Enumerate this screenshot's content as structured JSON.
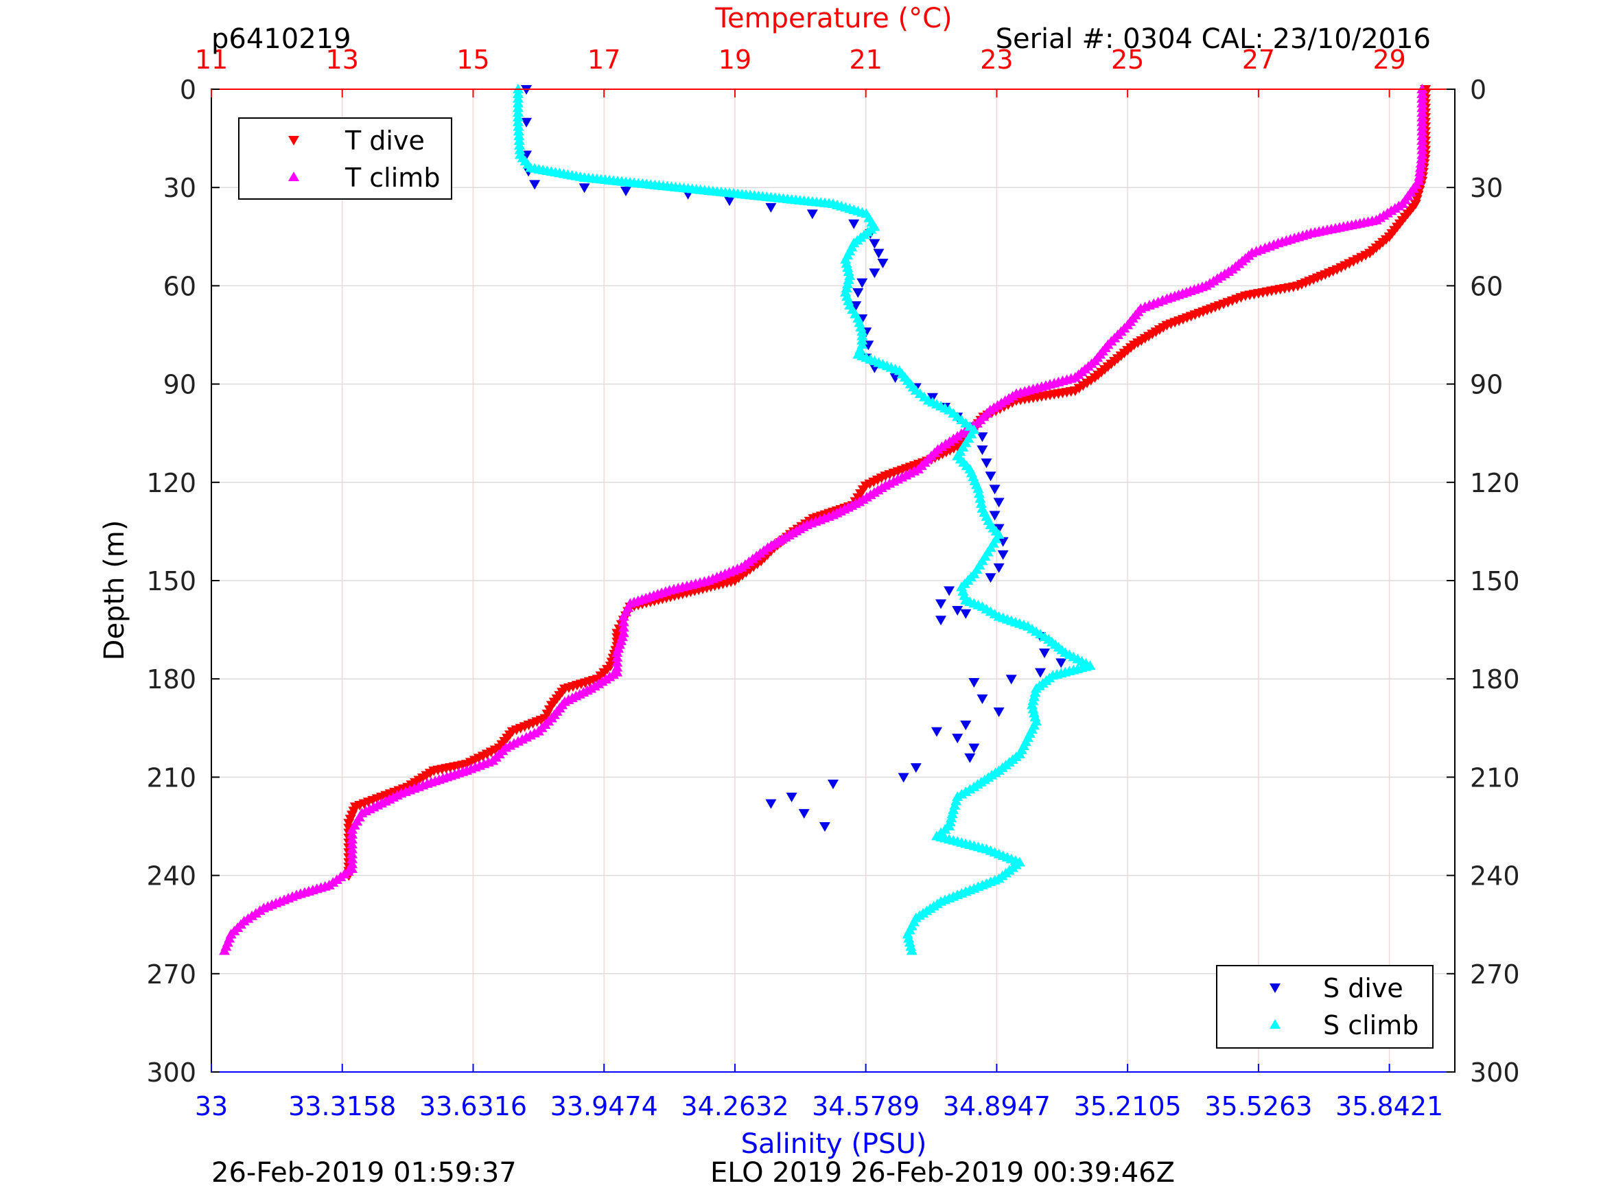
{
  "chart_data": {
    "type": "scatter",
    "header": {
      "left": "p6410219",
      "right": "Serial #: 0304  CAL: 23/10/2016"
    },
    "footer": {
      "left": "26-Feb-2019 01:59:37",
      "right": "ELO 2019 26-Feb-2019 00:39:46Z"
    },
    "axes": {
      "y": {
        "label": "Depth (m)",
        "range": [
          0,
          300
        ],
        "inverted": true,
        "ticks": [
          0,
          30,
          60,
          90,
          120,
          150,
          180,
          210,
          240,
          270,
          300
        ],
        "tick_labels": [
          "0",
          "30",
          "60",
          "90",
          "120",
          "150",
          "180",
          "210",
          "240",
          "270",
          "300"
        ]
      },
      "x_top": {
        "label": "Temperature (°C)",
        "range": [
          11,
          30
        ],
        "ticks": [
          11,
          13,
          15,
          17,
          19,
          21,
          23,
          25,
          27,
          29
        ],
        "tick_labels": [
          "11",
          "13",
          "15",
          "17",
          "19",
          "21",
          "23",
          "25",
          "27",
          "29"
        ]
      },
      "x_bottom": {
        "label": "Salinity (PSU)",
        "range": [
          33,
          36
        ],
        "ticks": [
          33,
          33.3158,
          33.6316,
          33.9474,
          34.2632,
          34.5789,
          34.8947,
          35.2105,
          35.5263,
          35.8421
        ],
        "tick_labels": [
          "33",
          "33.3158",
          "33.6316",
          "33.9474",
          "34.2632",
          "34.5789",
          "34.8947",
          "35.2105",
          "35.5263",
          "35.8421"
        ]
      }
    },
    "grid": true,
    "colors": {
      "temp_axis": "#ff0000",
      "sal_axis": "#0000ff",
      "t_dive": "#ff0000",
      "t_climb": "#ff00ff",
      "s_dive": "#0000ee",
      "s_climb": "#00ffff",
      "grid_temp": "#f0d8d8",
      "grid_depth": "#dcdcdc"
    },
    "legends": [
      {
        "position": "top-left",
        "entries": [
          {
            "label": "T dive",
            "series": "t_dive",
            "marker": "triangle-down"
          },
          {
            "label": "T climb",
            "series": "t_climb",
            "marker": "triangle-up"
          }
        ]
      },
      {
        "position": "bottom-right",
        "entries": [
          {
            "label": "S dive",
            "series": "s_dive",
            "marker": "triangle-down"
          },
          {
            "label": "S climb",
            "series": "s_climb",
            "marker": "triangle-up"
          }
        ]
      }
    ],
    "series": [
      {
        "name": "T dive",
        "key": "t_dive",
        "axis": "temperature",
        "marker": "triangle-down",
        "points": [
          [
            29.55,
            0
          ],
          [
            29.55,
            10
          ],
          [
            29.55,
            20
          ],
          [
            29.5,
            28
          ],
          [
            29.4,
            35
          ],
          [
            29.2,
            40
          ],
          [
            29.0,
            45
          ],
          [
            28.7,
            50
          ],
          [
            28.2,
            55
          ],
          [
            27.6,
            60
          ],
          [
            26.8,
            63
          ],
          [
            26.4,
            66
          ],
          [
            25.6,
            72
          ],
          [
            25.1,
            78
          ],
          [
            24.8,
            83
          ],
          [
            24.5,
            88
          ],
          [
            24.2,
            92
          ],
          [
            23.3,
            95
          ],
          [
            22.8,
            100
          ],
          [
            22.6,
            105
          ],
          [
            22.4,
            109
          ],
          [
            22.0,
            113
          ],
          [
            21.3,
            118
          ],
          [
            21.0,
            121
          ],
          [
            20.8,
            127
          ],
          [
            20.2,
            131
          ],
          [
            19.9,
            135
          ],
          [
            19.6,
            140
          ],
          [
            19.4,
            144
          ],
          [
            19.0,
            150
          ],
          [
            18.2,
            154
          ],
          [
            17.4,
            158
          ],
          [
            17.3,
            162
          ],
          [
            17.2,
            166
          ],
          [
            17.2,
            170
          ],
          [
            17.1,
            176
          ],
          [
            16.9,
            180
          ],
          [
            16.4,
            183
          ],
          [
            16.2,
            188
          ],
          [
            16.1,
            192
          ],
          [
            15.6,
            196
          ],
          [
            15.4,
            201
          ],
          [
            14.9,
            206
          ],
          [
            14.4,
            208
          ],
          [
            14.0,
            213
          ],
          [
            13.6,
            216
          ],
          [
            13.2,
            219
          ],
          [
            13.1,
            224
          ],
          [
            13.1,
            230
          ],
          [
            13.1,
            236
          ],
          [
            13.1,
            240
          ]
        ]
      },
      {
        "name": "T climb",
        "key": "t_climb",
        "axis": "temperature",
        "marker": "triangle-up",
        "points": [
          [
            29.5,
            0
          ],
          [
            29.5,
            10
          ],
          [
            29.5,
            20
          ],
          [
            29.45,
            28
          ],
          [
            29.2,
            35
          ],
          [
            28.8,
            40
          ],
          [
            27.8,
            44
          ],
          [
            27.3,
            47
          ],
          [
            26.9,
            50
          ],
          [
            26.6,
            55
          ],
          [
            26.2,
            60
          ],
          [
            25.6,
            64
          ],
          [
            25.2,
            67
          ],
          [
            25.0,
            72
          ],
          [
            24.7,
            78
          ],
          [
            24.5,
            83
          ],
          [
            24.2,
            88
          ],
          [
            23.3,
            93
          ],
          [
            22.9,
            98
          ],
          [
            22.7,
            102
          ],
          [
            22.4,
            106
          ],
          [
            22.1,
            110
          ],
          [
            21.8,
            116
          ],
          [
            21.3,
            121
          ],
          [
            20.9,
            126
          ],
          [
            20.5,
            130
          ],
          [
            20.1,
            133
          ],
          [
            19.5,
            140
          ],
          [
            19.1,
            146
          ],
          [
            18.6,
            150
          ],
          [
            18.0,
            153
          ],
          [
            17.4,
            157
          ],
          [
            17.3,
            161
          ],
          [
            17.3,
            166
          ],
          [
            17.2,
            172
          ],
          [
            17.2,
            178
          ],
          [
            16.8,
            183
          ],
          [
            16.4,
            187
          ],
          [
            16.2,
            192
          ],
          [
            16.0,
            196
          ],
          [
            15.5,
            201
          ],
          [
            15.3,
            205
          ],
          [
            14.9,
            208
          ],
          [
            14.3,
            212
          ],
          [
            13.9,
            215
          ],
          [
            13.6,
            218
          ],
          [
            13.3,
            221
          ],
          [
            13.15,
            226
          ],
          [
            13.15,
            232
          ],
          [
            13.15,
            238
          ],
          [
            12.8,
            243
          ],
          [
            12.3,
            246
          ],
          [
            11.8,
            250
          ],
          [
            11.5,
            254
          ],
          [
            11.3,
            258
          ],
          [
            11.2,
            263
          ]
        ]
      },
      {
        "name": "S dive",
        "key": "s_dive",
        "axis": "salinity",
        "marker": "triangle-down",
        "points": [
          [
            33.76,
            0
          ],
          [
            33.76,
            10
          ],
          [
            33.76,
            20
          ],
          [
            33.765,
            25
          ],
          [
            33.78,
            29
          ],
          [
            33.9,
            30
          ],
          [
            34.0,
            31
          ],
          [
            34.15,
            32
          ],
          [
            34.25,
            34
          ],
          [
            34.35,
            36
          ],
          [
            34.45,
            38
          ],
          [
            34.55,
            41
          ],
          [
            34.59,
            44
          ],
          [
            34.6,
            47
          ],
          [
            34.61,
            50
          ],
          [
            34.62,
            53
          ],
          [
            34.6,
            56
          ],
          [
            34.57,
            59
          ],
          [
            34.56,
            62
          ],
          [
            34.555,
            66
          ],
          [
            34.57,
            70
          ],
          [
            34.58,
            74
          ],
          [
            34.585,
            78
          ],
          [
            34.58,
            82
          ],
          [
            34.6,
            85
          ],
          [
            34.65,
            88
          ],
          [
            34.7,
            91
          ],
          [
            34.74,
            94
          ],
          [
            34.77,
            97
          ],
          [
            34.8,
            100
          ],
          [
            34.84,
            103
          ],
          [
            34.86,
            106
          ],
          [
            34.86,
            110
          ],
          [
            34.87,
            114
          ],
          [
            34.88,
            118
          ],
          [
            34.89,
            122
          ],
          [
            34.9,
            126
          ],
          [
            34.89,
            130
          ],
          [
            34.9,
            134
          ],
          [
            34.91,
            138
          ],
          [
            34.91,
            142
          ],
          [
            34.9,
            146
          ],
          [
            34.88,
            149
          ],
          [
            34.78,
            153
          ],
          [
            34.76,
            157
          ],
          [
            34.8,
            159
          ],
          [
            34.76,
            162
          ],
          [
            34.82,
            160
          ],
          [
            35.0,
            167
          ],
          [
            35.01,
            172
          ],
          [
            35.05,
            175
          ],
          [
            35.0,
            178
          ],
          [
            34.93,
            180
          ],
          [
            34.84,
            181
          ],
          [
            34.86,
            186
          ],
          [
            34.9,
            190
          ],
          [
            34.82,
            194
          ],
          [
            34.75,
            196
          ],
          [
            34.8,
            198
          ],
          [
            34.84,
            201
          ],
          [
            34.83,
            204
          ],
          [
            34.7,
            207
          ],
          [
            34.67,
            210
          ],
          [
            34.5,
            212
          ],
          [
            34.4,
            216
          ],
          [
            34.35,
            218
          ],
          [
            34.43,
            221
          ],
          [
            34.48,
            225
          ]
        ]
      },
      {
        "name": "S climb",
        "key": "s_climb",
        "axis": "salinity",
        "marker": "triangle-up",
        "points": [
          [
            33.74,
            0
          ],
          [
            33.74,
            10
          ],
          [
            33.745,
            20
          ],
          [
            33.77,
            24
          ],
          [
            33.9,
            27
          ],
          [
            34.05,
            29
          ],
          [
            34.2,
            31
          ],
          [
            34.35,
            33
          ],
          [
            34.5,
            35
          ],
          [
            34.58,
            38
          ],
          [
            34.6,
            42
          ],
          [
            34.55,
            47
          ],
          [
            34.53,
            52
          ],
          [
            34.54,
            57
          ],
          [
            34.53,
            62
          ],
          [
            34.54,
            66
          ],
          [
            34.56,
            70
          ],
          [
            34.57,
            74
          ],
          [
            34.57,
            78
          ],
          [
            34.56,
            81
          ],
          [
            34.6,
            83
          ],
          [
            34.66,
            86
          ],
          [
            34.68,
            89
          ],
          [
            34.7,
            92
          ],
          [
            34.73,
            95
          ],
          [
            34.78,
            98
          ],
          [
            34.81,
            101
          ],
          [
            34.84,
            104
          ],
          [
            34.82,
            108
          ],
          [
            34.8,
            112
          ],
          [
            34.83,
            116
          ],
          [
            34.85,
            122
          ],
          [
            34.86,
            128
          ],
          [
            34.88,
            133
          ],
          [
            34.9,
            136
          ],
          [
            34.88,
            140
          ],
          [
            34.86,
            144
          ],
          [
            34.84,
            148
          ],
          [
            34.81,
            152
          ],
          [
            34.82,
            156
          ],
          [
            34.86,
            158
          ],
          [
            34.9,
            161
          ],
          [
            34.97,
            164
          ],
          [
            35.02,
            168
          ],
          [
            35.06,
            172
          ],
          [
            35.12,
            176
          ],
          [
            35.03,
            179
          ],
          [
            34.99,
            183
          ],
          [
            34.98,
            188
          ],
          [
            34.99,
            193
          ],
          [
            34.97,
            198
          ],
          [
            34.95,
            203
          ],
          [
            34.9,
            208
          ],
          [
            34.84,
            213
          ],
          [
            34.8,
            216
          ],
          [
            34.79,
            220
          ],
          [
            34.78,
            225
          ],
          [
            34.75,
            228
          ],
          [
            34.87,
            232
          ],
          [
            34.95,
            236
          ],
          [
            34.9,
            241
          ],
          [
            34.84,
            244
          ],
          [
            34.76,
            248
          ],
          [
            34.7,
            253
          ],
          [
            34.68,
            258
          ],
          [
            34.69,
            263
          ]
        ]
      }
    ]
  }
}
